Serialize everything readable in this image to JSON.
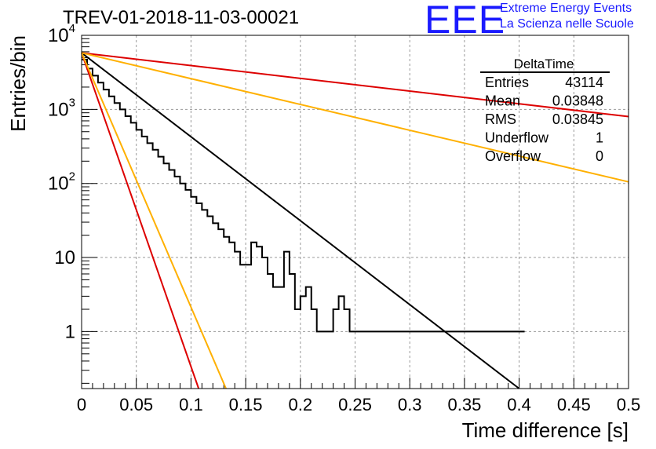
{
  "header": {
    "run_title": "TREV-01-2018-11-03-00021",
    "logo_text": "EEE",
    "logo_line1": "Extreme Energy Events",
    "logo_line2": "La Scienza nelle Scuole"
  },
  "stats_box": {
    "title": "DeltaTime",
    "rows": [
      {
        "label": "Entries",
        "value": "43114"
      },
      {
        "label": "Mean",
        "value": "0.03848"
      },
      {
        "label": "RMS",
        "value": "0.03845"
      },
      {
        "label": "Underflow",
        "value": "1"
      },
      {
        "label": "Overflow",
        "value": "0"
      }
    ]
  },
  "chart_data": {
    "type": "line",
    "xlabel": "Time difference [s]",
    "ylabel": "Entries/bin",
    "xlim": [
      0,
      0.5
    ],
    "ylim": [
      0.17,
      10000
    ],
    "yscale": "log",
    "grid": true,
    "x_ticks": [
      "0",
      "0.05",
      "0.1",
      "0.15",
      "0.2",
      "0.25",
      "0.3",
      "0.35",
      "0.4",
      "0.45",
      "0.5"
    ],
    "y_ticks": [
      {
        "value": 1,
        "base": "1",
        "exp": ""
      },
      {
        "value": 10,
        "base": "10",
        "exp": ""
      },
      {
        "value": 100,
        "base": "10",
        "exp": "2"
      },
      {
        "value": 1000,
        "base": "10",
        "exp": "3"
      },
      {
        "value": 10000,
        "base": "10",
        "exp": "4"
      }
    ],
    "histogram": {
      "bin_edges_start": 0,
      "bin_width": 0.005,
      "counts": [
        4700,
        3550,
        2850,
        2300,
        1850,
        1500,
        1220,
        1000,
        810,
        660,
        530,
        430,
        350,
        285,
        230,
        186,
        152,
        124,
        100,
        82,
        66,
        54,
        44,
        36,
        29,
        24,
        19,
        16,
        12,
        8,
        8,
        16,
        14,
        10,
        6,
        4,
        4,
        12,
        6,
        2,
        3,
        4,
        2,
        1,
        1,
        1,
        2,
        3,
        2,
        1,
        1,
        1,
        1,
        1,
        1,
        1,
        1,
        1,
        1,
        1,
        1,
        1,
        1,
        1,
        1,
        1,
        1,
        1,
        1,
        1,
        1,
        1,
        1,
        1,
        1,
        1,
        1,
        1,
        1,
        1,
        1
      ],
      "color": "#000000"
    },
    "series": [
      {
        "x": [
          0,
          0.4
        ],
        "y": [
          5800,
          0.17
        ],
        "color": "#000000"
      },
      {
        "x": [
          0,
          0.5
        ],
        "y": [
          5800,
          800
        ],
        "color": "#dd0000"
      },
      {
        "x": [
          0,
          0.5
        ],
        "y": [
          5800,
          105
        ],
        "color": "#ffb000"
      },
      {
        "x": [
          0,
          0.107
        ],
        "y": [
          5800,
          0.17
        ],
        "color": "#dd0000"
      },
      {
        "x": [
          0,
          0.132
        ],
        "y": [
          5800,
          0.17
        ],
        "color": "#ffb000"
      }
    ]
  }
}
